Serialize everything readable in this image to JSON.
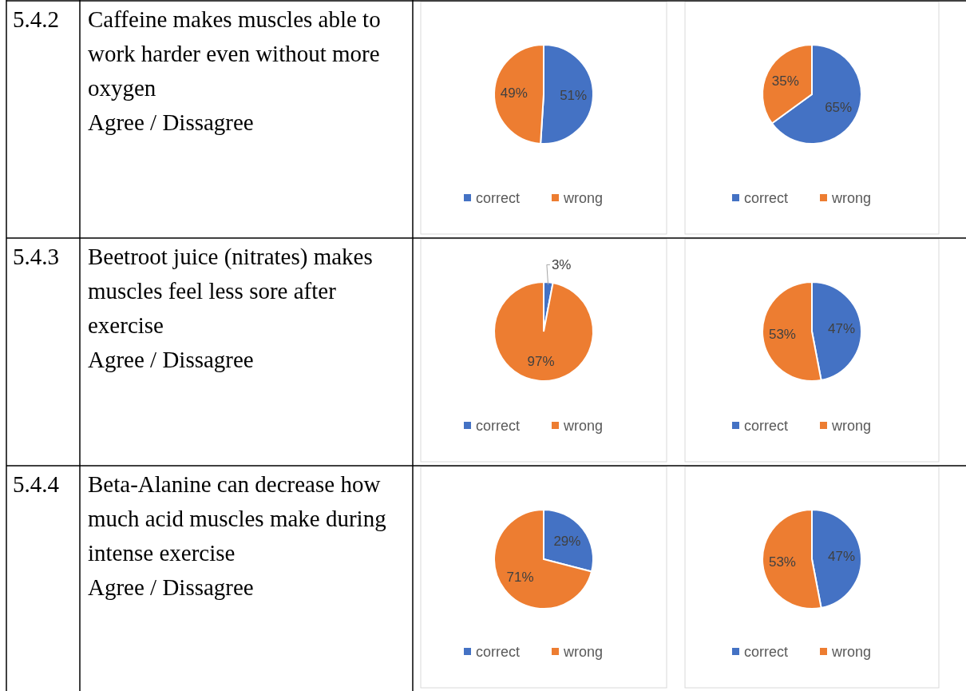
{
  "chart_data": [
    {
      "type": "other",
      "title": "5.4.2",
      "subtitle": "Caffeine makes muscles able to work harder even without more oxygen",
      "annotations": [
        "Agree / Dissagree"
      ]
    },
    {
      "type": "pie",
      "categories": [
        "correct",
        "wrong"
      ],
      "values": [
        51,
        49
      ],
      "value_labels": [
        "51%",
        "49%"
      ],
      "colors": [
        "#4472c4",
        "#ed7d31"
      ],
      "legend": "bottom"
    },
    {
      "type": "pie",
      "categories": [
        "correct",
        "wrong"
      ],
      "values": [
        65,
        35
      ],
      "value_labels": [
        "65%",
        "35%"
      ],
      "colors": [
        "#4472c4",
        "#ed7d31"
      ],
      "legend": "bottom"
    },
    {
      "type": "other",
      "title": "5.4.3",
      "subtitle": "Beetroot juice (nitrates) makes muscles feel less sore after exercise",
      "annotations": [
        "Agree / Dissagree"
      ]
    },
    {
      "type": "pie",
      "categories": [
        "correct",
        "wrong"
      ],
      "values": [
        3,
        97
      ],
      "value_labels": [
        "3%",
        "97%"
      ],
      "colors": [
        "#4472c4",
        "#ed7d31"
      ],
      "legend": "bottom"
    },
    {
      "type": "pie",
      "categories": [
        "correct",
        "wrong"
      ],
      "values": [
        47,
        53
      ],
      "value_labels": [
        "47%",
        "53%"
      ],
      "colors": [
        "#4472c4",
        "#ed7d31"
      ],
      "legend": "bottom"
    },
    {
      "type": "other",
      "title": "5.4.4",
      "subtitle": "Beta-Alanine can decrease how much acid muscles make during intense exercise",
      "annotations": [
        "Agree / Dissagree"
      ]
    },
    {
      "type": "pie",
      "categories": [
        "correct",
        "wrong"
      ],
      "values": [
        29,
        71
      ],
      "value_labels": [
        "29%",
        "71%"
      ],
      "colors": [
        "#4472c4",
        "#ed7d31"
      ],
      "legend": "bottom"
    },
    {
      "type": "pie",
      "categories": [
        "correct",
        "wrong"
      ],
      "values": [
        47,
        53
      ],
      "value_labels": [
        "47%",
        "53%"
      ],
      "colors": [
        "#4472c4",
        "#ed7d31"
      ],
      "legend": "bottom"
    }
  ]
}
